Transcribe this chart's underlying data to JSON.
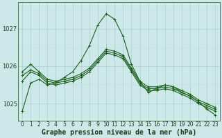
{
  "title": "Graphe pression niveau de la mer (hPa)",
  "bg_color": "#cce8e8",
  "grid_color_major": "#aacece",
  "grid_color_minor": "#bddcdc",
  "line_color": "#1a5e1a",
  "marker_color": "#1a5e1a",
  "axis_color": "#3a6a3a",
  "text_color": "#1a3a1a",
  "hours": [
    0,
    1,
    2,
    3,
    4,
    5,
    6,
    7,
    8,
    9,
    10,
    11,
    12,
    13,
    14,
    15,
    16,
    17,
    18,
    19,
    20,
    21,
    22,
    23
  ],
  "series": [
    [
      1025.6,
      1025.85,
      1025.75,
      1025.55,
      1025.5,
      1025.55,
      1025.6,
      1025.7,
      1025.85,
      1026.1,
      1026.35,
      1026.3,
      1026.2,
      1025.85,
      1025.5,
      1025.35,
      1025.35,
      1025.4,
      1025.35,
      1025.25,
      1025.15,
      1025.0,
      1024.9,
      1024.8
    ],
    [
      1025.75,
      1025.9,
      1025.8,
      1025.6,
      1025.55,
      1025.6,
      1025.65,
      1025.75,
      1025.9,
      1026.15,
      1026.4,
      1026.35,
      1026.25,
      1025.9,
      1025.55,
      1025.4,
      1025.4,
      1025.45,
      1025.4,
      1025.3,
      1025.2,
      1025.05,
      1024.95,
      1024.85
    ],
    [
      1025.85,
      1026.05,
      1025.85,
      1025.65,
      1025.6,
      1025.65,
      1025.7,
      1025.8,
      1025.95,
      1026.2,
      1026.45,
      1026.4,
      1026.3,
      1025.95,
      1025.6,
      1025.45,
      1025.45,
      1025.5,
      1025.45,
      1025.35,
      1025.25,
      1025.1,
      1025.0,
      1024.9
    ],
    [
      1024.8,
      1025.55,
      1025.65,
      1025.5,
      1025.55,
      1025.7,
      1025.85,
      1026.15,
      1026.55,
      1027.1,
      1027.4,
      1027.25,
      1026.8,
      1026.05,
      1025.6,
      1025.3,
      1025.4,
      1025.5,
      1025.45,
      1025.3,
      1025.2,
      1025.05,
      1024.85,
      1024.7
    ]
  ],
  "ylim": [
    1024.55,
    1027.7
  ],
  "yticks": [
    1025.0,
    1026.0,
    1027.0
  ],
  "ytick_labels": [
    "1025",
    "1026",
    "1027"
  ],
  "xlim": [
    -0.5,
    23.5
  ],
  "xticks": [
    0,
    1,
    2,
    3,
    4,
    5,
    6,
    7,
    8,
    9,
    10,
    11,
    12,
    13,
    14,
    15,
    16,
    17,
    18,
    19,
    20,
    21,
    22,
    23
  ],
  "title_fontsize": 7.0,
  "tick_fontsize": 5.5,
  "marker_size": 2.5,
  "linewidth": 0.8
}
